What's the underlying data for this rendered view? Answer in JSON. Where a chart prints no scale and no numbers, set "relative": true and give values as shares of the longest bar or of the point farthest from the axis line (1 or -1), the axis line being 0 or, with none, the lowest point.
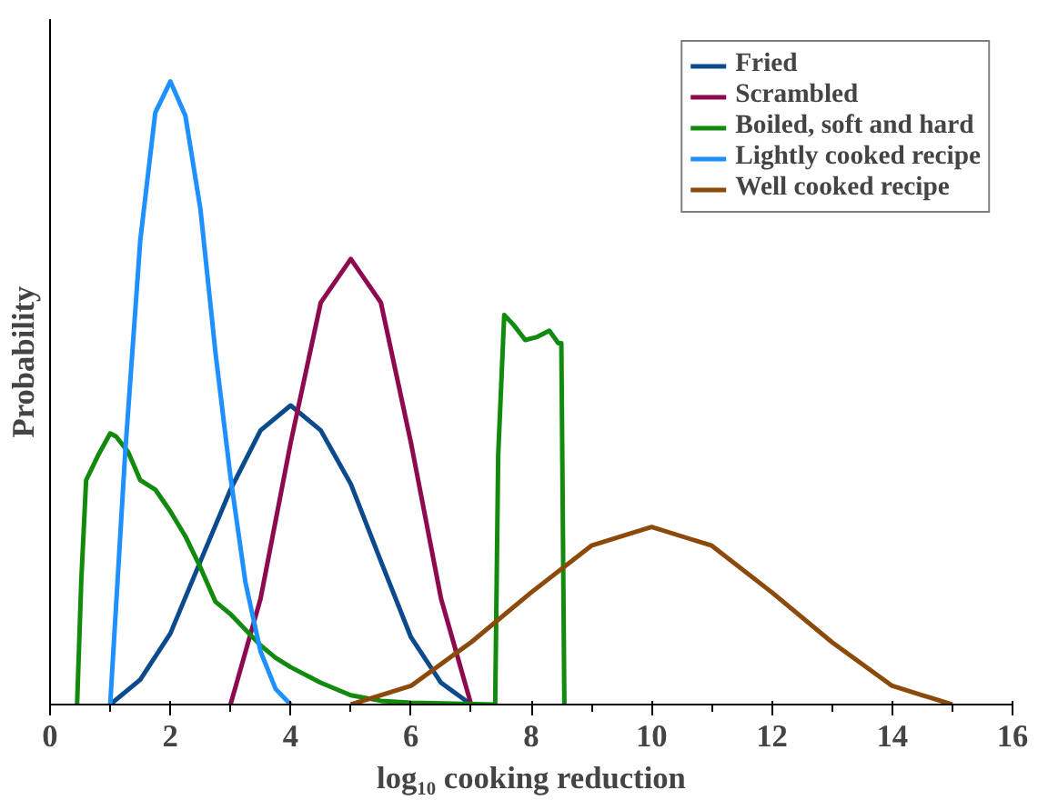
{
  "chart_data": {
    "type": "line",
    "relative": true,
    "xlabel": "log₁₀ cooking reduction",
    "ylabel": "Probability",
    "xlim": [
      0,
      16
    ],
    "xticks": [
      0,
      2,
      4,
      6,
      8,
      10,
      12,
      14,
      16
    ],
    "legend": "top right",
    "grid": false,
    "marker": "none",
    "line_style": "solid",
    "series": [
      {
        "name": "Fried",
        "color": "#0b4a8c",
        "x": [
          1,
          1.5,
          2,
          2.5,
          3,
          3.5,
          4,
          4.5,
          5,
          5.5,
          6,
          6.5,
          7
        ],
        "values": [
          0,
          0.04,
          0.114,
          0.23,
          0.345,
          0.44,
          0.48,
          0.44,
          0.354,
          0.23,
          0.108,
          0.035,
          0
        ]
      },
      {
        "name": "Scrambled",
        "color": "#8e0a4f",
        "x": [
          3,
          3.5,
          4,
          4.5,
          5,
          5.5,
          6,
          6.5,
          7
        ],
        "values": [
          0,
          0.17,
          0.42,
          0.645,
          0.715,
          0.645,
          0.42,
          0.17,
          0
        ]
      },
      {
        "name": "Boiled, soft and hard",
        "color": "#118a0e",
        "x": [
          0.45,
          0.52,
          0.6,
          0.8,
          1.0,
          1.1,
          1.3,
          1.5,
          1.75,
          2,
          2.25,
          2.5,
          2.75,
          3,
          3.25,
          3.5,
          3.75,
          4,
          4.5,
          5,
          5.5,
          6,
          7.4,
          7.45,
          7.55,
          7.7,
          7.9,
          8.1,
          8.3,
          8.45,
          8.5,
          8.55
        ],
        "values": [
          0,
          0.2,
          0.36,
          0.4,
          0.435,
          0.43,
          0.405,
          0.36,
          0.345,
          0.31,
          0.27,
          0.22,
          0.165,
          0.145,
          0.12,
          0.095,
          0.075,
          0.06,
          0.035,
          0.015,
          0.006,
          0.003,
          0,
          0.4,
          0.625,
          0.61,
          0.585,
          0.59,
          0.6,
          0.58,
          0.58,
          0
        ]
      },
      {
        "name": "Lightly cooked recipe",
        "color": "#1e90ff",
        "x": [
          1,
          1.25,
          1.5,
          1.75,
          2,
          2.25,
          2.5,
          2.75,
          3,
          3.25,
          3.5,
          3.75,
          4
        ],
        "values": [
          0,
          0.405,
          0.745,
          0.95,
          1,
          0.945,
          0.795,
          0.565,
          0.365,
          0.195,
          0.085,
          0.025,
          0
        ]
      },
      {
        "name": "Well cooked recipe",
        "color": "#8b4a0a",
        "x": [
          5,
          6,
          7,
          8,
          9,
          10,
          11,
          12,
          13,
          14,
          15
        ],
        "values": [
          0,
          0.03,
          0.1,
          0.18,
          0.255,
          0.285,
          0.255,
          0.18,
          0.1,
          0.03,
          0
        ]
      }
    ]
  }
}
